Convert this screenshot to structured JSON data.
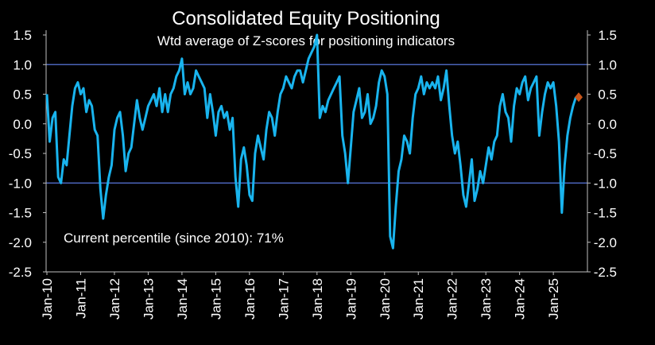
{
  "chart_data": {
    "type": "line",
    "title": "Consolidated Equity Positioning",
    "subtitle": "Wtd average of Z-scores for positioning indicators",
    "annotation": "Current percentile (since 2010): 71%",
    "x_start": "2010-01",
    "x_end": "2025-10",
    "x_tick_labels": [
      "Jan-10",
      "Jan-11",
      "Jan-12",
      "Jan-13",
      "Jan-14",
      "Jan-15",
      "Jan-16",
      "Jan-17",
      "Jan-18",
      "Jan-19",
      "Jan-20",
      "Jan-21",
      "Jan-22",
      "Jan-23",
      "Jan-24",
      "Jan-25"
    ],
    "y_tick_labels": [
      "1.5",
      "1.0",
      "0.5",
      "0.0",
      "-0.5",
      "-1.0",
      "-1.5",
      "-2.0",
      "-2.5"
    ],
    "ylim": [
      -2.5,
      1.5
    ],
    "reference_lines": [
      1.0,
      -1.0
    ],
    "series": [
      {
        "color": "#19b4ee",
        "points": [
          [
            "2010-01",
            0.5
          ],
          [
            "2010-02",
            -0.3
          ],
          [
            "2010-03",
            0.1
          ],
          [
            "2010-04",
            0.2
          ],
          [
            "2010-05",
            -0.9
          ],
          [
            "2010-06",
            -1.0
          ],
          [
            "2010-07",
            -0.6
          ],
          [
            "2010-08",
            -0.7
          ],
          [
            "2010-09",
            -0.2
          ],
          [
            "2010-10",
            0.3
          ],
          [
            "2010-11",
            0.6
          ],
          [
            "2010-12",
            0.7
          ],
          [
            "2011-01",
            0.5
          ],
          [
            "2011-02",
            0.6
          ],
          [
            "2011-03",
            0.2
          ],
          [
            "2011-04",
            0.4
          ],
          [
            "2011-05",
            0.3
          ],
          [
            "2011-06",
            -0.1
          ],
          [
            "2011-07",
            -0.2
          ],
          [
            "2011-08",
            -1.1
          ],
          [
            "2011-09",
            -1.6
          ],
          [
            "2011-10",
            -1.2
          ],
          [
            "2011-11",
            -0.9
          ],
          [
            "2011-12",
            -0.7
          ],
          [
            "2012-01",
            -0.1
          ],
          [
            "2012-02",
            0.1
          ],
          [
            "2012-03",
            0.2
          ],
          [
            "2012-04",
            -0.2
          ],
          [
            "2012-05",
            -0.8
          ],
          [
            "2012-06",
            -0.5
          ],
          [
            "2012-07",
            -0.4
          ],
          [
            "2012-08",
            0.0
          ],
          [
            "2012-09",
            0.4
          ],
          [
            "2012-10",
            0.1
          ],
          [
            "2012-11",
            -0.1
          ],
          [
            "2012-12",
            0.1
          ],
          [
            "2013-01",
            0.3
          ],
          [
            "2013-02",
            0.4
          ],
          [
            "2013-03",
            0.5
          ],
          [
            "2013-04",
            0.3
          ],
          [
            "2013-05",
            0.6
          ],
          [
            "2013-06",
            0.2
          ],
          [
            "2013-07",
            0.5
          ],
          [
            "2013-08",
            0.2
          ],
          [
            "2013-09",
            0.5
          ],
          [
            "2013-10",
            0.6
          ],
          [
            "2013-11",
            0.8
          ],
          [
            "2013-12",
            0.9
          ],
          [
            "2014-01",
            1.1
          ],
          [
            "2014-02",
            0.5
          ],
          [
            "2014-03",
            0.7
          ],
          [
            "2014-04",
            0.5
          ],
          [
            "2014-05",
            0.6
          ],
          [
            "2014-06",
            0.9
          ],
          [
            "2014-07",
            0.8
          ],
          [
            "2014-08",
            0.7
          ],
          [
            "2014-09",
            0.6
          ],
          [
            "2014-10",
            0.1
          ],
          [
            "2014-11",
            0.5
          ],
          [
            "2014-12",
            0.2
          ],
          [
            "2015-01",
            -0.2
          ],
          [
            "2015-02",
            0.2
          ],
          [
            "2015-03",
            0.3
          ],
          [
            "2015-04",
            0.1
          ],
          [
            "2015-05",
            0.2
          ],
          [
            "2015-06",
            -0.1
          ],
          [
            "2015-07",
            0.1
          ],
          [
            "2015-08",
            -0.9
          ],
          [
            "2015-09",
            -1.4
          ],
          [
            "2015-10",
            -0.6
          ],
          [
            "2015-11",
            -0.4
          ],
          [
            "2015-12",
            -0.7
          ],
          [
            "2016-01",
            -1.2
          ],
          [
            "2016-02",
            -1.3
          ],
          [
            "2016-03",
            -0.5
          ],
          [
            "2016-04",
            -0.2
          ],
          [
            "2016-05",
            -0.4
          ],
          [
            "2016-06",
            -0.6
          ],
          [
            "2016-07",
            -0.1
          ],
          [
            "2016-08",
            0.2
          ],
          [
            "2016-09",
            0.1
          ],
          [
            "2016-10",
            -0.2
          ],
          [
            "2016-11",
            0.2
          ],
          [
            "2016-12",
            0.5
          ],
          [
            "2017-01",
            0.6
          ],
          [
            "2017-02",
            0.8
          ],
          [
            "2017-03",
            0.7
          ],
          [
            "2017-04",
            0.6
          ],
          [
            "2017-05",
            0.8
          ],
          [
            "2017-06",
            0.9
          ],
          [
            "2017-07",
            0.9
          ],
          [
            "2017-08",
            0.7
          ],
          [
            "2017-09",
            0.9
          ],
          [
            "2017-10",
            1.1
          ],
          [
            "2017-11",
            1.2
          ],
          [
            "2017-12",
            1.3
          ],
          [
            "2018-01",
            1.5
          ],
          [
            "2018-02",
            0.1
          ],
          [
            "2018-03",
            0.3
          ],
          [
            "2018-04",
            0.2
          ],
          [
            "2018-05",
            0.4
          ],
          [
            "2018-06",
            0.5
          ],
          [
            "2018-07",
            0.6
          ],
          [
            "2018-08",
            0.7
          ],
          [
            "2018-09",
            0.8
          ],
          [
            "2018-10",
            -0.2
          ],
          [
            "2018-11",
            -0.5
          ],
          [
            "2018-12",
            -1.0
          ],
          [
            "2019-01",
            -0.4
          ],
          [
            "2019-02",
            0.2
          ],
          [
            "2019-03",
            0.4
          ],
          [
            "2019-04",
            0.6
          ],
          [
            "2019-05",
            0.1
          ],
          [
            "2019-06",
            0.2
          ],
          [
            "2019-07",
            0.5
          ],
          [
            "2019-08",
            0.0
          ],
          [
            "2019-09",
            0.1
          ],
          [
            "2019-10",
            0.3
          ],
          [
            "2019-11",
            0.7
          ],
          [
            "2019-12",
            0.9
          ],
          [
            "2020-01",
            0.8
          ],
          [
            "2020-02",
            0.5
          ],
          [
            "2020-03",
            -1.9
          ],
          [
            "2020-04",
            -2.1
          ],
          [
            "2020-05",
            -1.4
          ],
          [
            "2020-06",
            -0.8
          ],
          [
            "2020-07",
            -0.6
          ],
          [
            "2020-08",
            -0.2
          ],
          [
            "2020-09",
            -0.3
          ],
          [
            "2020-10",
            -0.5
          ],
          [
            "2020-11",
            0.1
          ],
          [
            "2020-12",
            0.5
          ],
          [
            "2021-01",
            0.6
          ],
          [
            "2021-02",
            0.8
          ],
          [
            "2021-03",
            0.5
          ],
          [
            "2021-04",
            0.7
          ],
          [
            "2021-05",
            0.6
          ],
          [
            "2021-06",
            0.7
          ],
          [
            "2021-07",
            0.6
          ],
          [
            "2021-08",
            0.8
          ],
          [
            "2021-09",
            0.4
          ],
          [
            "2021-10",
            0.6
          ],
          [
            "2021-11",
            0.9
          ],
          [
            "2021-12",
            0.3
          ],
          [
            "2022-01",
            -0.2
          ],
          [
            "2022-02",
            -0.5
          ],
          [
            "2022-03",
            -0.3
          ],
          [
            "2022-04",
            -0.7
          ],
          [
            "2022-05",
            -1.2
          ],
          [
            "2022-06",
            -1.4
          ],
          [
            "2022-07",
            -1.0
          ],
          [
            "2022-08",
            -0.6
          ],
          [
            "2022-09",
            -1.3
          ],
          [
            "2022-10",
            -1.1
          ],
          [
            "2022-11",
            -0.8
          ],
          [
            "2022-12",
            -1.0
          ],
          [
            "2023-01",
            -0.7
          ],
          [
            "2023-02",
            -0.4
          ],
          [
            "2023-03",
            -0.6
          ],
          [
            "2023-04",
            -0.3
          ],
          [
            "2023-05",
            -0.2
          ],
          [
            "2023-06",
            0.3
          ],
          [
            "2023-07",
            0.5
          ],
          [
            "2023-08",
            0.2
          ],
          [
            "2023-09",
            0.1
          ],
          [
            "2023-10",
            -0.3
          ],
          [
            "2023-11",
            0.3
          ],
          [
            "2023-12",
            0.6
          ],
          [
            "2024-01",
            0.5
          ],
          [
            "2024-02",
            0.7
          ],
          [
            "2024-03",
            0.8
          ],
          [
            "2024-04",
            0.4
          ],
          [
            "2024-05",
            0.6
          ],
          [
            "2024-06",
            0.7
          ],
          [
            "2024-07",
            0.8
          ],
          [
            "2024-08",
            -0.2
          ],
          [
            "2024-09",
            0.2
          ],
          [
            "2024-10",
            0.5
          ],
          [
            "2024-11",
            0.7
          ],
          [
            "2024-12",
            0.6
          ],
          [
            "2025-01",
            0.7
          ],
          [
            "2025-02",
            0.3
          ],
          [
            "2025-03",
            -0.3
          ],
          [
            "2025-04",
            -1.5
          ],
          [
            "2025-05",
            -0.7
          ],
          [
            "2025-06",
            -0.2
          ],
          [
            "2025-07",
            0.1
          ],
          [
            "2025-08",
            0.3
          ],
          [
            "2025-09",
            0.45
          ]
        ]
      }
    ],
    "current_point": {
      "x": "2025-10",
      "y": 0.45,
      "color": "#c8561b"
    },
    "legend": "none",
    "grid": false
  }
}
